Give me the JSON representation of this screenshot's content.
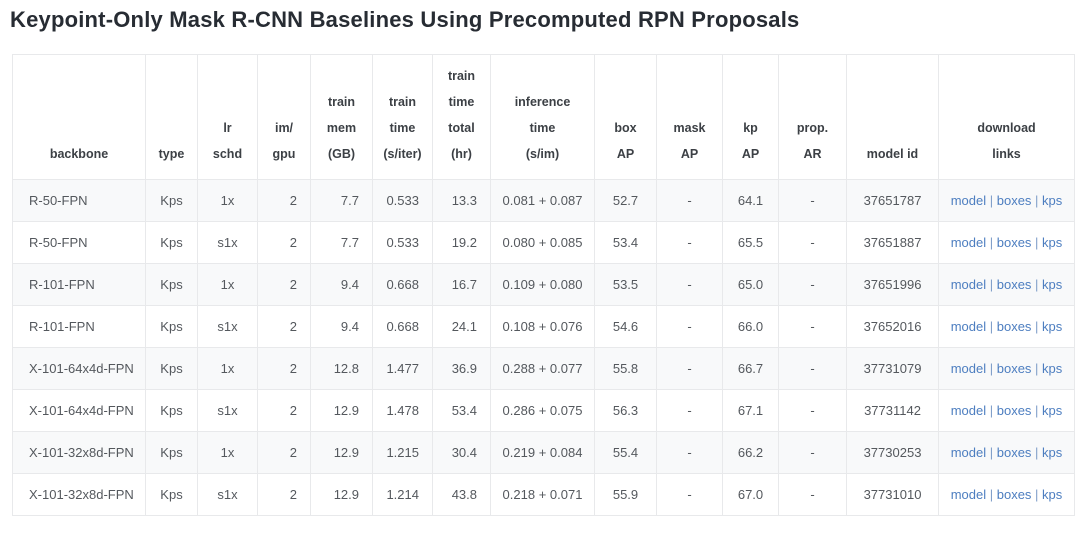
{
  "page": {
    "title": "Keypoint-Only Mask R-CNN Baselines Using Precomputed RPN Proposals"
  },
  "colors": {
    "link": "#4d7ec0",
    "stripe": "#f8f9fa",
    "border": "#e8e9eb"
  },
  "table": {
    "link_separator": "|",
    "columns": [
      {
        "id": "backbone",
        "lines": [
          "backbone"
        ]
      },
      {
        "id": "type",
        "lines": [
          "type"
        ]
      },
      {
        "id": "lr-schd",
        "lines": [
          "lr",
          "schd"
        ]
      },
      {
        "id": "im-gpu",
        "lines": [
          "im/",
          "gpu"
        ]
      },
      {
        "id": "train-mem",
        "lines": [
          "train",
          "mem",
          "(GB)"
        ]
      },
      {
        "id": "train-time",
        "lines": [
          "train",
          "time",
          "(s/iter)"
        ]
      },
      {
        "id": "train-time-total",
        "lines": [
          "train",
          "time",
          "total",
          "(hr)"
        ]
      },
      {
        "id": "inference-time",
        "lines": [
          "inference",
          "time",
          "(s/im)"
        ]
      },
      {
        "id": "box-ap",
        "lines": [
          "box",
          "AP"
        ]
      },
      {
        "id": "mask-ap",
        "lines": [
          "mask",
          "AP"
        ]
      },
      {
        "id": "kp-ap",
        "lines": [
          "kp",
          "AP"
        ]
      },
      {
        "id": "prop-ar",
        "lines": [
          "prop.",
          "AR"
        ]
      },
      {
        "id": "model-id",
        "lines": [
          "model id"
        ]
      },
      {
        "id": "download-links",
        "lines": [
          "download",
          "links"
        ]
      }
    ],
    "rows": [
      {
        "backbone": "R-50-FPN",
        "type": "Kps",
        "lr_schd": "1x",
        "im_gpu": "2",
        "train_mem": "7.7",
        "train_time": "0.533",
        "train_time_total": "13.3",
        "inference_time": "0.081 + 0.087",
        "box_ap": "52.7",
        "mask_ap": "-",
        "kp_ap": "64.1",
        "prop_ar": "-",
        "model_id": "37651787",
        "links": [
          "model",
          "boxes",
          "kps"
        ]
      },
      {
        "backbone": "R-50-FPN",
        "type": "Kps",
        "lr_schd": "s1x",
        "im_gpu": "2",
        "train_mem": "7.7",
        "train_time": "0.533",
        "train_time_total": "19.2",
        "inference_time": "0.080 + 0.085",
        "box_ap": "53.4",
        "mask_ap": "-",
        "kp_ap": "65.5",
        "prop_ar": "-",
        "model_id": "37651887",
        "links": [
          "model",
          "boxes",
          "kps"
        ]
      },
      {
        "backbone": "R-101-FPN",
        "type": "Kps",
        "lr_schd": "1x",
        "im_gpu": "2",
        "train_mem": "9.4",
        "train_time": "0.668",
        "train_time_total": "16.7",
        "inference_time": "0.109 + 0.080",
        "box_ap": "53.5",
        "mask_ap": "-",
        "kp_ap": "65.0",
        "prop_ar": "-",
        "model_id": "37651996",
        "links": [
          "model",
          "boxes",
          "kps"
        ]
      },
      {
        "backbone": "R-101-FPN",
        "type": "Kps",
        "lr_schd": "s1x",
        "im_gpu": "2",
        "train_mem": "9.4",
        "train_time": "0.668",
        "train_time_total": "24.1",
        "inference_time": "0.108 + 0.076",
        "box_ap": "54.6",
        "mask_ap": "-",
        "kp_ap": "66.0",
        "prop_ar": "-",
        "model_id": "37652016",
        "links": [
          "model",
          "boxes",
          "kps"
        ]
      },
      {
        "backbone": "X-101-64x4d-FPN",
        "type": "Kps",
        "lr_schd": "1x",
        "im_gpu": "2",
        "train_mem": "12.8",
        "train_time": "1.477",
        "train_time_total": "36.9",
        "inference_time": "0.288 + 0.077",
        "box_ap": "55.8",
        "mask_ap": "-",
        "kp_ap": "66.7",
        "prop_ar": "-",
        "model_id": "37731079",
        "links": [
          "model",
          "boxes",
          "kps"
        ]
      },
      {
        "backbone": "X-101-64x4d-FPN",
        "type": "Kps",
        "lr_schd": "s1x",
        "im_gpu": "2",
        "train_mem": "12.9",
        "train_time": "1.478",
        "train_time_total": "53.4",
        "inference_time": "0.286 + 0.075",
        "box_ap": "56.3",
        "mask_ap": "-",
        "kp_ap": "67.1",
        "prop_ar": "-",
        "model_id": "37731142",
        "links": [
          "model",
          "boxes",
          "kps"
        ]
      },
      {
        "backbone": "X-101-32x8d-FPN",
        "type": "Kps",
        "lr_schd": "1x",
        "im_gpu": "2",
        "train_mem": "12.9",
        "train_time": "1.215",
        "train_time_total": "30.4",
        "inference_time": "0.219 + 0.084",
        "box_ap": "55.4",
        "mask_ap": "-",
        "kp_ap": "66.2",
        "prop_ar": "-",
        "model_id": "37730253",
        "links": [
          "model",
          "boxes",
          "kps"
        ]
      },
      {
        "backbone": "X-101-32x8d-FPN",
        "type": "Kps",
        "lr_schd": "s1x",
        "im_gpu": "2",
        "train_mem": "12.9",
        "train_time": "1.214",
        "train_time_total": "43.8",
        "inference_time": "0.218 + 0.071",
        "box_ap": "55.9",
        "mask_ap": "-",
        "kp_ap": "67.0",
        "prop_ar": "-",
        "model_id": "37731010",
        "links": [
          "model",
          "boxes",
          "kps"
        ]
      }
    ]
  }
}
